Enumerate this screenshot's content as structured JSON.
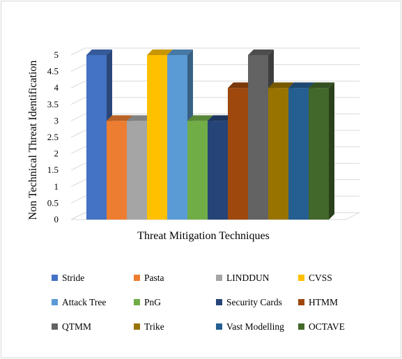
{
  "chart_data": {
    "type": "bar",
    "style": "3d-clustered-column",
    "xlabel": "Threat Mitigation Techniques",
    "ylabel": "Non Technical Threat Identification",
    "ylim": [
      0,
      5
    ],
    "yticks": [
      "0",
      "0.5",
      "1",
      "1.5",
      "2",
      "2.5",
      "3",
      "3.5",
      "4",
      "4.5",
      "5"
    ],
    "grid": true,
    "legend_position": "bottom",
    "series": [
      {
        "name": "Stride",
        "value": 5,
        "color": "#4472C4"
      },
      {
        "name": "Pasta",
        "value": 3,
        "color": "#ED7D31"
      },
      {
        "name": "LINDDUN",
        "value": 3,
        "color": "#A5A5A5"
      },
      {
        "name": "CVSS",
        "value": 5,
        "color": "#FFC000"
      },
      {
        "name": "Attack Tree",
        "value": 5,
        "color": "#5B9BD5"
      },
      {
        "name": "PnG",
        "value": 3,
        "color": "#70AD47"
      },
      {
        "name": "Security Cards",
        "value": 3,
        "color": "#264478"
      },
      {
        "name": "HTMM",
        "value": 4,
        "color": "#9E480E"
      },
      {
        "name": "QTMM",
        "value": 5,
        "color": "#636363"
      },
      {
        "name": "Trike",
        "value": 4,
        "color": "#997300"
      },
      {
        "name": "Vast Modelling",
        "value": 4,
        "color": "#255E91"
      },
      {
        "name": "OCTAVE",
        "value": 4,
        "color": "#43682B"
      }
    ]
  }
}
